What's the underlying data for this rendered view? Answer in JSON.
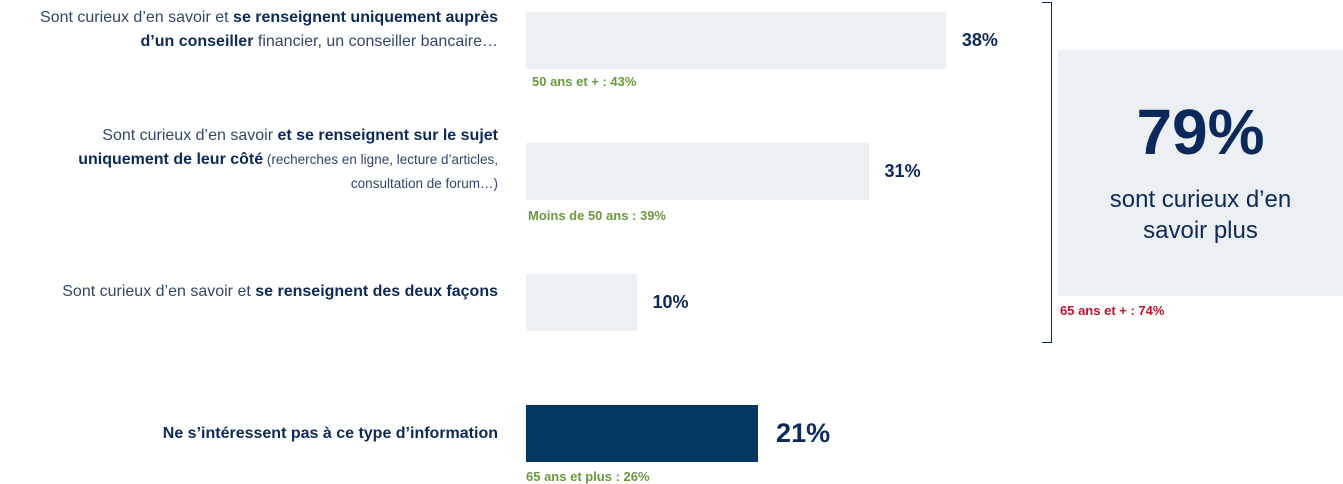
{
  "chart_data": {
    "type": "bar",
    "orientation": "horizontal",
    "categories": [
      [
        {
          "text": "Sont curieux d’en savoir et ",
          "style": "regular"
        },
        {
          "text": "se renseignent uniquement auprès d’un conseiller",
          "style": "bold"
        },
        {
          "text": " financier, un conseiller bancaire…",
          "style": "regular"
        }
      ],
      [
        {
          "text": "Sont curieux d’en savoir ",
          "style": "regular"
        },
        {
          "text": "et se renseignent sur le sujet uniquement de leur côté",
          "style": "bold"
        },
        {
          "text": " (recherches en ligne, lecture d’articles, consultation de forum…)",
          "style": "small"
        }
      ],
      [
        {
          "text": "Sont curieux d’en savoir et ",
          "style": "regular"
        },
        {
          "text": "se renseignent des deux façons",
          "style": "bold"
        }
      ],
      [
        {
          "text": "Ne s’intéressent pas à ce type d’information",
          "style": "bold"
        }
      ]
    ],
    "values": [
      38,
      31,
      10,
      21
    ],
    "value_labels": [
      "38%",
      "31%",
      "10%",
      "21%"
    ],
    "colors": [
      "#edf0f3",
      "#edf0f3",
      "#edf0f3",
      "#003763"
    ],
    "notes": [
      {
        "text": "50 ans et + : 43%",
        "color": "#6a9a3c"
      },
      {
        "text": "Moins de 50 ans : 39%",
        "color": "#6a9a3c"
      },
      null,
      {
        "text": "65 ans et plus : 26%",
        "color": "#6a9a3c"
      }
    ],
    "summary": {
      "value": "79%",
      "text": "sont curieux d’en savoir plus",
      "note": "65 ans et + : 74%",
      "note_color": "#c8102e"
    }
  }
}
